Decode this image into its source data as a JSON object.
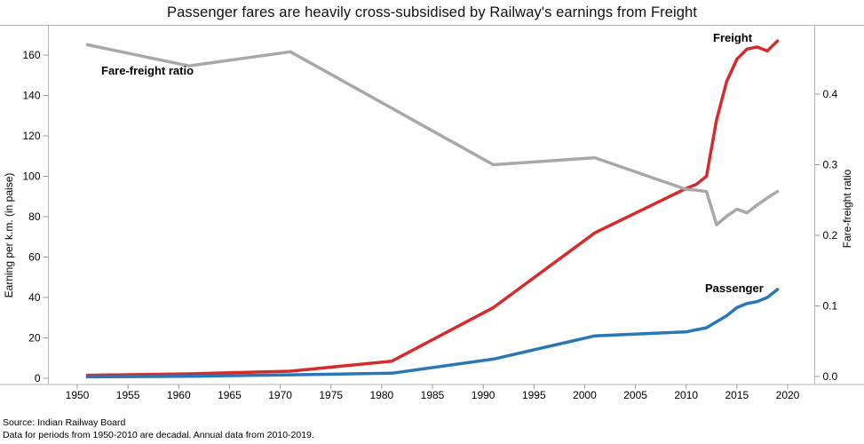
{
  "title": "Passenger fares are heavily cross-subsidised by Railway's earnings from Freight",
  "footer": {
    "source_line": "Source: Indian Railway Board",
    "note_line": "Data for periods from 1950-2010 are decadal. Annual data from 2010-2019."
  },
  "chart_data": {
    "type": "line",
    "title": "Passenger fares are heavily cross-subsidised by Railway's earnings from Freight",
    "x": [
      1951,
      1961,
      1971,
      1981,
      1991,
      2001,
      2010,
      2011,
      2012,
      2013,
      2014,
      2015,
      2016,
      2017,
      2018,
      2019
    ],
    "series": [
      {
        "name": "Freight",
        "axis": "left",
        "color": "#d62b2b",
        "values": [
          1.5,
          2.2,
          3.5,
          8.5,
          35,
          72,
          94,
          96,
          100,
          128,
          147,
          158,
          163,
          164,
          162,
          167
        ]
      },
      {
        "name": "Passenger",
        "axis": "left",
        "color": "#2878b8",
        "values": [
          0.7,
          1.0,
          1.7,
          2.5,
          9.5,
          21,
          23,
          24,
          25,
          28,
          31,
          35,
          37,
          38,
          40,
          44
        ]
      },
      {
        "name": "Fare-freight ratio",
        "axis": "right",
        "color": "#a8a8a8",
        "values": [
          0.47,
          0.44,
          0.46,
          0.38,
          0.3,
          0.31,
          0.265,
          0.264,
          0.262,
          0.215,
          0.227,
          0.237,
          0.232,
          0.243,
          0.253,
          0.262
        ]
      }
    ],
    "left_axis": {
      "label": "Earning per k.m. (in paise)",
      "ticks": [
        0,
        20,
        40,
        60,
        80,
        100,
        120,
        140,
        160
      ],
      "range": [
        0,
        172
      ]
    },
    "right_axis": {
      "label": "Fare-freight ratio",
      "ticks": [
        "0.0",
        "0.1",
        "0.2",
        "0.3",
        "0.4"
      ],
      "range": [
        0,
        0.49
      ]
    },
    "x_axis": {
      "ticks": [
        1950,
        1955,
        1960,
        1965,
        1970,
        1975,
        1980,
        1985,
        1990,
        1995,
        2000,
        2005,
        2010,
        2015,
        2020
      ],
      "range": [
        1947,
        2023
      ]
    },
    "annotations": [
      {
        "text": "Fare-freight ratio"
      },
      {
        "text": "Freight"
      },
      {
        "text": "Passenger"
      }
    ],
    "grid": false,
    "legend": "inline-labels",
    "line_width": 3.5,
    "axis_color": "#b5b5b5",
    "tick_color": "#999999"
  }
}
